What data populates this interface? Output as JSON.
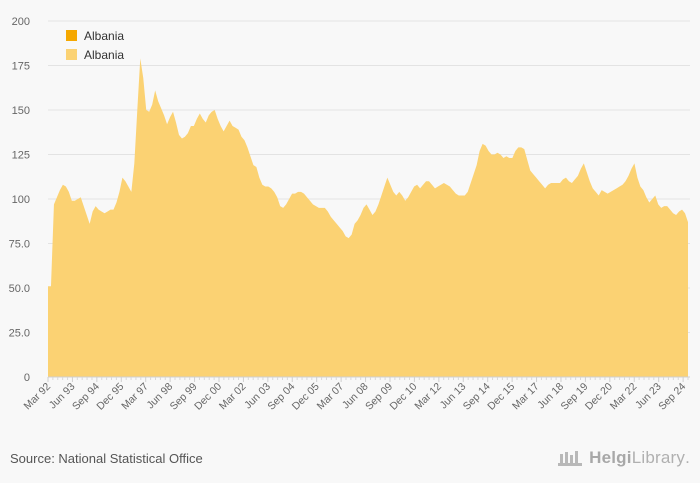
{
  "chart_data": {
    "type": "area",
    "ylim": [
      0,
      200
    ],
    "y_ticks": [
      "0",
      "25.0",
      "50.0",
      "75.0",
      "100",
      "125",
      "150",
      "175",
      "200"
    ],
    "x_tick_labels": [
      "Mar 92",
      "Jun 93",
      "Sep 94",
      "Dec 95",
      "Mar 97",
      "Jun 98",
      "Sep 99",
      "Dec 00",
      "Mar 02",
      "Jun 03",
      "Sep 04",
      "Dec 05",
      "Mar 07",
      "Jun 08",
      "Sep 09",
      "Dec 10",
      "Mar 12",
      "Jun 13",
      "Sep 14",
      "Dec 15",
      "Mar 17",
      "Jun 18",
      "Sep 19",
      "Dec 20",
      "Mar 22",
      "Jun 23",
      "Sep 24"
    ],
    "legend": [
      {
        "name": "Albania",
        "color": "#f5a800"
      },
      {
        "name": "Albania",
        "color": "#fbd273"
      }
    ],
    "series": [
      {
        "name": "Albania",
        "color": "#fbd273",
        "values": [
          51,
          51,
          97,
          101,
          105,
          108,
          107,
          104,
          99,
          99,
          100,
          101,
          96,
          91,
          86,
          93,
          96,
          94,
          93,
          92,
          93,
          94,
          94,
          98,
          104,
          112,
          110,
          107,
          104,
          120,
          150,
          179,
          168,
          150,
          149,
          153,
          161,
          155,
          151,
          147,
          142,
          146,
          149,
          143,
          136,
          134,
          135,
          137,
          141,
          141,
          145,
          148,
          145,
          143,
          147,
          149,
          150,
          145,
          141,
          138,
          141,
          144,
          141,
          140,
          139,
          135,
          133,
          129,
          124,
          119,
          118,
          112,
          108,
          107,
          107,
          106,
          104,
          101,
          96,
          95,
          97,
          100,
          103,
          103,
          104,
          104,
          103,
          101,
          99,
          97,
          96,
          95,
          95,
          95,
          93,
          90,
          88,
          86,
          84,
          82,
          79,
          78,
          80,
          86,
          88,
          91,
          95,
          97,
          94,
          91,
          93,
          97,
          102,
          107,
          112,
          108,
          104,
          102,
          104,
          102,
          99,
          101,
          104,
          107,
          108,
          106,
          108,
          110,
          110,
          108,
          106,
          107,
          108,
          109,
          108,
          107,
          105,
          103,
          102,
          102,
          102,
          104,
          109,
          114,
          119,
          127,
          131,
          130,
          127,
          125,
          125,
          126,
          125,
          123,
          124,
          123,
          123,
          127,
          129,
          129,
          128,
          122,
          116,
          114,
          112,
          110,
          108,
          106,
          108,
          109,
          109,
          109,
          109,
          111,
          112,
          110,
          109,
          111,
          113,
          117,
          120,
          115,
          110,
          106,
          104,
          102,
          105,
          104,
          103,
          104,
          105,
          106,
          107,
          108,
          110,
          113,
          117,
          120,
          112,
          107,
          105,
          101,
          98,
          100,
          102,
          97,
          95,
          96,
          96,
          94,
          92,
          91,
          93,
          94,
          92,
          87
        ]
      }
    ]
  },
  "footer": {
    "source": "Source: National Statistical Office",
    "brand_part1": "Helgi",
    "brand_part2": "Library",
    "brand_suffix": "."
  }
}
